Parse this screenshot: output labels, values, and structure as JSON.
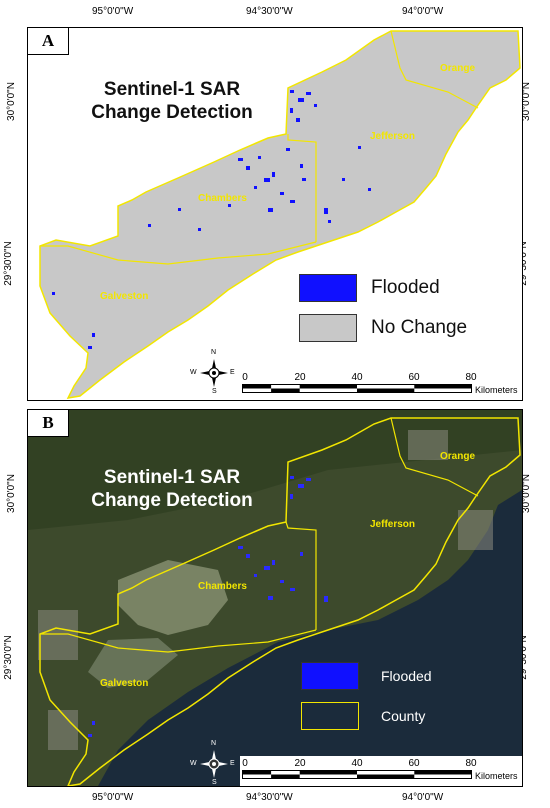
{
  "coordinates": {
    "lon_top": [
      "95°0'0\"W",
      "94°30'0\"W",
      "94°0'0\"W"
    ],
    "lon_bottom": [
      "95°0'0\"W",
      "94°30'0\"W",
      "94°0'0\"W"
    ],
    "lat_a": [
      "30°0'0\"N",
      "29°30'0\"N"
    ],
    "lat_b": [
      "30°0'0\"N",
      "29°30'0\"N"
    ]
  },
  "panel_a": {
    "label": "A",
    "title_line1": "Sentinel-1 SAR",
    "title_line2": "Change Detection",
    "counties": [
      "Orange",
      "Jefferson",
      "Chambers",
      "Galveston"
    ],
    "legend": [
      {
        "label": "Flooded",
        "color": "#1010ff"
      },
      {
        "label": "No Change",
        "color": "#c8c8c8"
      }
    ]
  },
  "panel_b": {
    "label": "B",
    "title_line1": "Sentinel-1 SAR",
    "title_line2": "Change Detection",
    "counties": [
      "Orange",
      "Jefferson",
      "Chambers",
      "Galveston"
    ],
    "legend": [
      {
        "label": "Flooded",
        "color": "#1010ff"
      },
      {
        "label": "County",
        "color": "#f2e600"
      }
    ]
  },
  "scale_bar": {
    "ticks": [
      "0",
      "20",
      "40",
      "60",
      "80"
    ],
    "unit": "Kilometers"
  },
  "compass": {
    "n": "N",
    "s": "S",
    "e": "E",
    "w": "W"
  }
}
